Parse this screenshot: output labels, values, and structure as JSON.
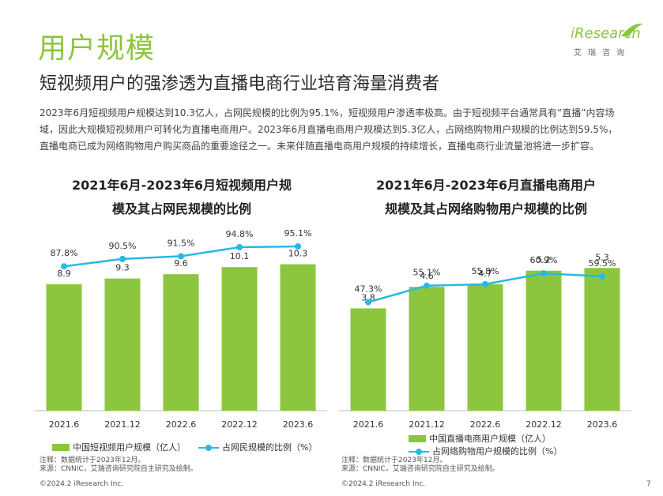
{
  "header": {
    "page_title": "用户规模",
    "subtitle": "短视频用户的强渗透为直播电商行业培育海量消费者",
    "body": "2023年6月短视频用户规模达到10.3亿人，占网民规模的比例为95.1%，短视频用户渗透率极高。由于短视频平台通常具有“直播”内容场域，因此大规模短视频用户可转化为直播电商用户。2023年6月直播电商用户规模达到5.3亿人，占网络购物用户规模的比例达到59.5%，直播电商已成为网络购物用户购买商品的重要途径之一。未来伴随直播电商用户规模的持续增长，直播电商行业流量池将进一步扩容。"
  },
  "logo": {
    "word": "iResearch",
    "cn": "艾瑞咨询"
  },
  "colors": {
    "bar": "#8cc63e",
    "line": "#29b8e6",
    "title_green": "#8cc63e"
  },
  "chart_data": [
    {
      "type": "bar",
      "title_line1": "2021年6月-2023年6月短视频用户规",
      "title_line2": "模及其占网民规模的比例",
      "categories": [
        "2021.6",
        "2021.12",
        "2022.6",
        "2022.12",
        "2023.6"
      ],
      "series": [
        {
          "name": "中国短视频用户规模（亿人）",
          "type": "bar",
          "values": [
            8.9,
            9.3,
            9.6,
            10.1,
            10.3
          ]
        },
        {
          "name": "占网民规模的比例（%）",
          "type": "line",
          "values": [
            87.8,
            90.5,
            91.5,
            94.8,
            95.1
          ],
          "labels": [
            "87.8%",
            "90.5%",
            "91.5%",
            "94.8%",
            "95.1%"
          ]
        }
      ],
      "bar_value_labels": [
        "8.9",
        "9.3",
        "9.6",
        "10.1",
        "10.3"
      ],
      "note": "注释：数据统计于2023年12月。",
      "source": "来源：CNNIC，艾瑞咨询研究院自主研究及绘制。"
    },
    {
      "type": "bar",
      "title_line1": "2021年6月-2023年6月直播电商用户",
      "title_line2": "规模及其占网络购物用户规模的比例",
      "categories": [
        "2021.6",
        "2021.12",
        "2022.6",
        "2022.12",
        "2023.6"
      ],
      "series": [
        {
          "name": "中国直播电商用户规模（亿人）",
          "type": "bar",
          "values": [
            3.8,
            4.6,
            4.7,
            5.2,
            5.3
          ]
        },
        {
          "name": "占网络购物用户规模的比例（%）",
          "type": "line",
          "values": [
            47.3,
            55.1,
            55.8,
            60.9,
            59.5
          ],
          "labels": [
            "47.3%",
            "55.1%",
            "55.8%",
            "60.9%",
            "59.5%"
          ]
        }
      ],
      "bar_value_labels": [
        "3.8",
        "4.6",
        "4.7",
        "5.2",
        "5.3"
      ],
      "note": "注释：数据统计于2023年12月。",
      "source": "来源：CNNIC，艾瑞咨询研究院自主研究及绘制。"
    }
  ],
  "footer": {
    "left": "©2024.2 iResearch Inc.",
    "right": "©2024.2 iResearch Inc.",
    "page": "7"
  }
}
